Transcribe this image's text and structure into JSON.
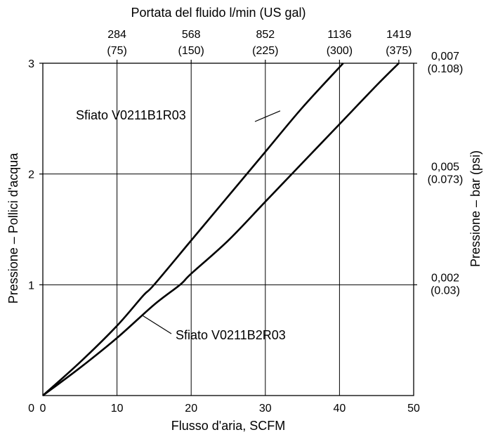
{
  "chart_data": {
    "type": "line",
    "title": "",
    "xlabel": "Flusso d'aria, SCFM",
    "ylabel": "Pressione – Pollici d'acqua",
    "xlim": [
      0,
      50
    ],
    "ylim": [
      0,
      3
    ],
    "grid": true,
    "x_ticks": [
      0,
      10,
      20,
      30,
      40,
      50
    ],
    "y_ticks": [
      1,
      2,
      3
    ],
    "y_origin_label": "0",
    "top_axis": {
      "label": "Portata del fluido l/min (US gal)",
      "ticks": [
        {
          "x": 10,
          "line1": "284",
          "line2": "(75)"
        },
        {
          "x": 20,
          "line1": "568",
          "line2": "(150)"
        },
        {
          "x": 30,
          "line1": "852",
          "line2": "(225)"
        },
        {
          "x": 40,
          "line1": "1136",
          "line2": "(300)"
        },
        {
          "x": 48,
          "line1": "1419",
          "line2": "(375)"
        }
      ]
    },
    "right_axis": {
      "label": "Pressione – bar (psi)",
      "ticks": [
        {
          "y": 3,
          "line1": "0,007",
          "line2": "(0.108)"
        },
        {
          "y": 2,
          "line1": "0,005",
          "line2": "(0.073)"
        },
        {
          "y": 1,
          "line1": "0,002",
          "line2": "(0.03)"
        }
      ]
    },
    "series": [
      {
        "name": "Sfiato V0211B1R03",
        "x": [
          0,
          5,
          10,
          13.5,
          15,
          20,
          25,
          30,
          35,
          40.5
        ],
        "y": [
          0,
          0.3,
          0.63,
          0.9,
          1.0,
          1.4,
          1.8,
          2.2,
          2.6,
          3.0
        ]
      },
      {
        "name": "Sfiato V0211B2R03",
        "x": [
          0,
          5,
          10,
          15,
          18.5,
          20,
          25,
          30,
          35,
          40,
          45,
          48
        ],
        "y": [
          0,
          0.25,
          0.52,
          0.82,
          1.0,
          1.1,
          1.4,
          1.75,
          2.1,
          2.45,
          2.8,
          3.0
        ]
      }
    ],
    "annotations": [
      {
        "text": "Sfiato V0211B1R03",
        "series": 0,
        "anchor_x": 32,
        "anchor_y": 2.57
      },
      {
        "text": "Sfiato V0211B2R03",
        "series": 1,
        "anchor_x": 13.5,
        "anchor_y": 0.72
      }
    ]
  }
}
